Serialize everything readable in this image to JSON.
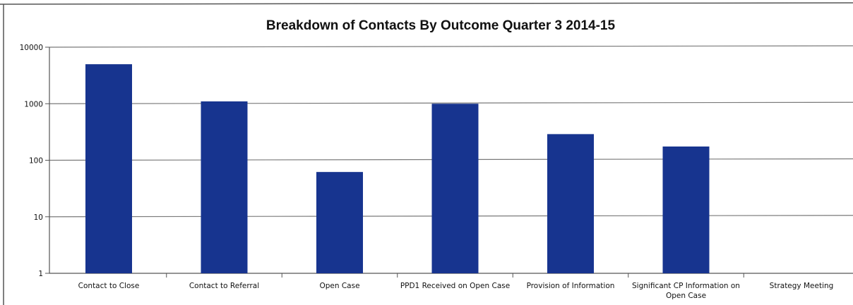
{
  "chart_data": {
    "type": "bar",
    "title": "Breakdown of Contacts By Outcome Quarter 3 2014-15",
    "xlabel": "",
    "ylabel": "",
    "yscale": "log",
    "ylim": [
      1,
      10000
    ],
    "yticks": [
      1,
      10,
      100,
      1000,
      10000
    ],
    "ytick_labels": [
      "1",
      "10",
      "100",
      "1000",
      "10000"
    ],
    "grid": true,
    "legend": "none",
    "bar_color": "#17348f",
    "categories": [
      "Contact to Close",
      "Contact to Referral",
      "Open Case",
      "PPD1 Received on Open Case",
      "Provision of Information",
      "Significant CP Information on Open Case",
      "Strategy Meeting"
    ],
    "category_lines": [
      [
        "Contact to Close"
      ],
      [
        "Contact to Referral"
      ],
      [
        "Open Case"
      ],
      [
        "PPD1 Received on Open Case"
      ],
      [
        "Provision of Information"
      ],
      [
        "Significant CP Information on",
        "Open Case"
      ],
      [
        "Strategy Meeting"
      ]
    ],
    "values": [
      5000,
      1100,
      62,
      1000,
      290,
      175,
      1
    ]
  }
}
